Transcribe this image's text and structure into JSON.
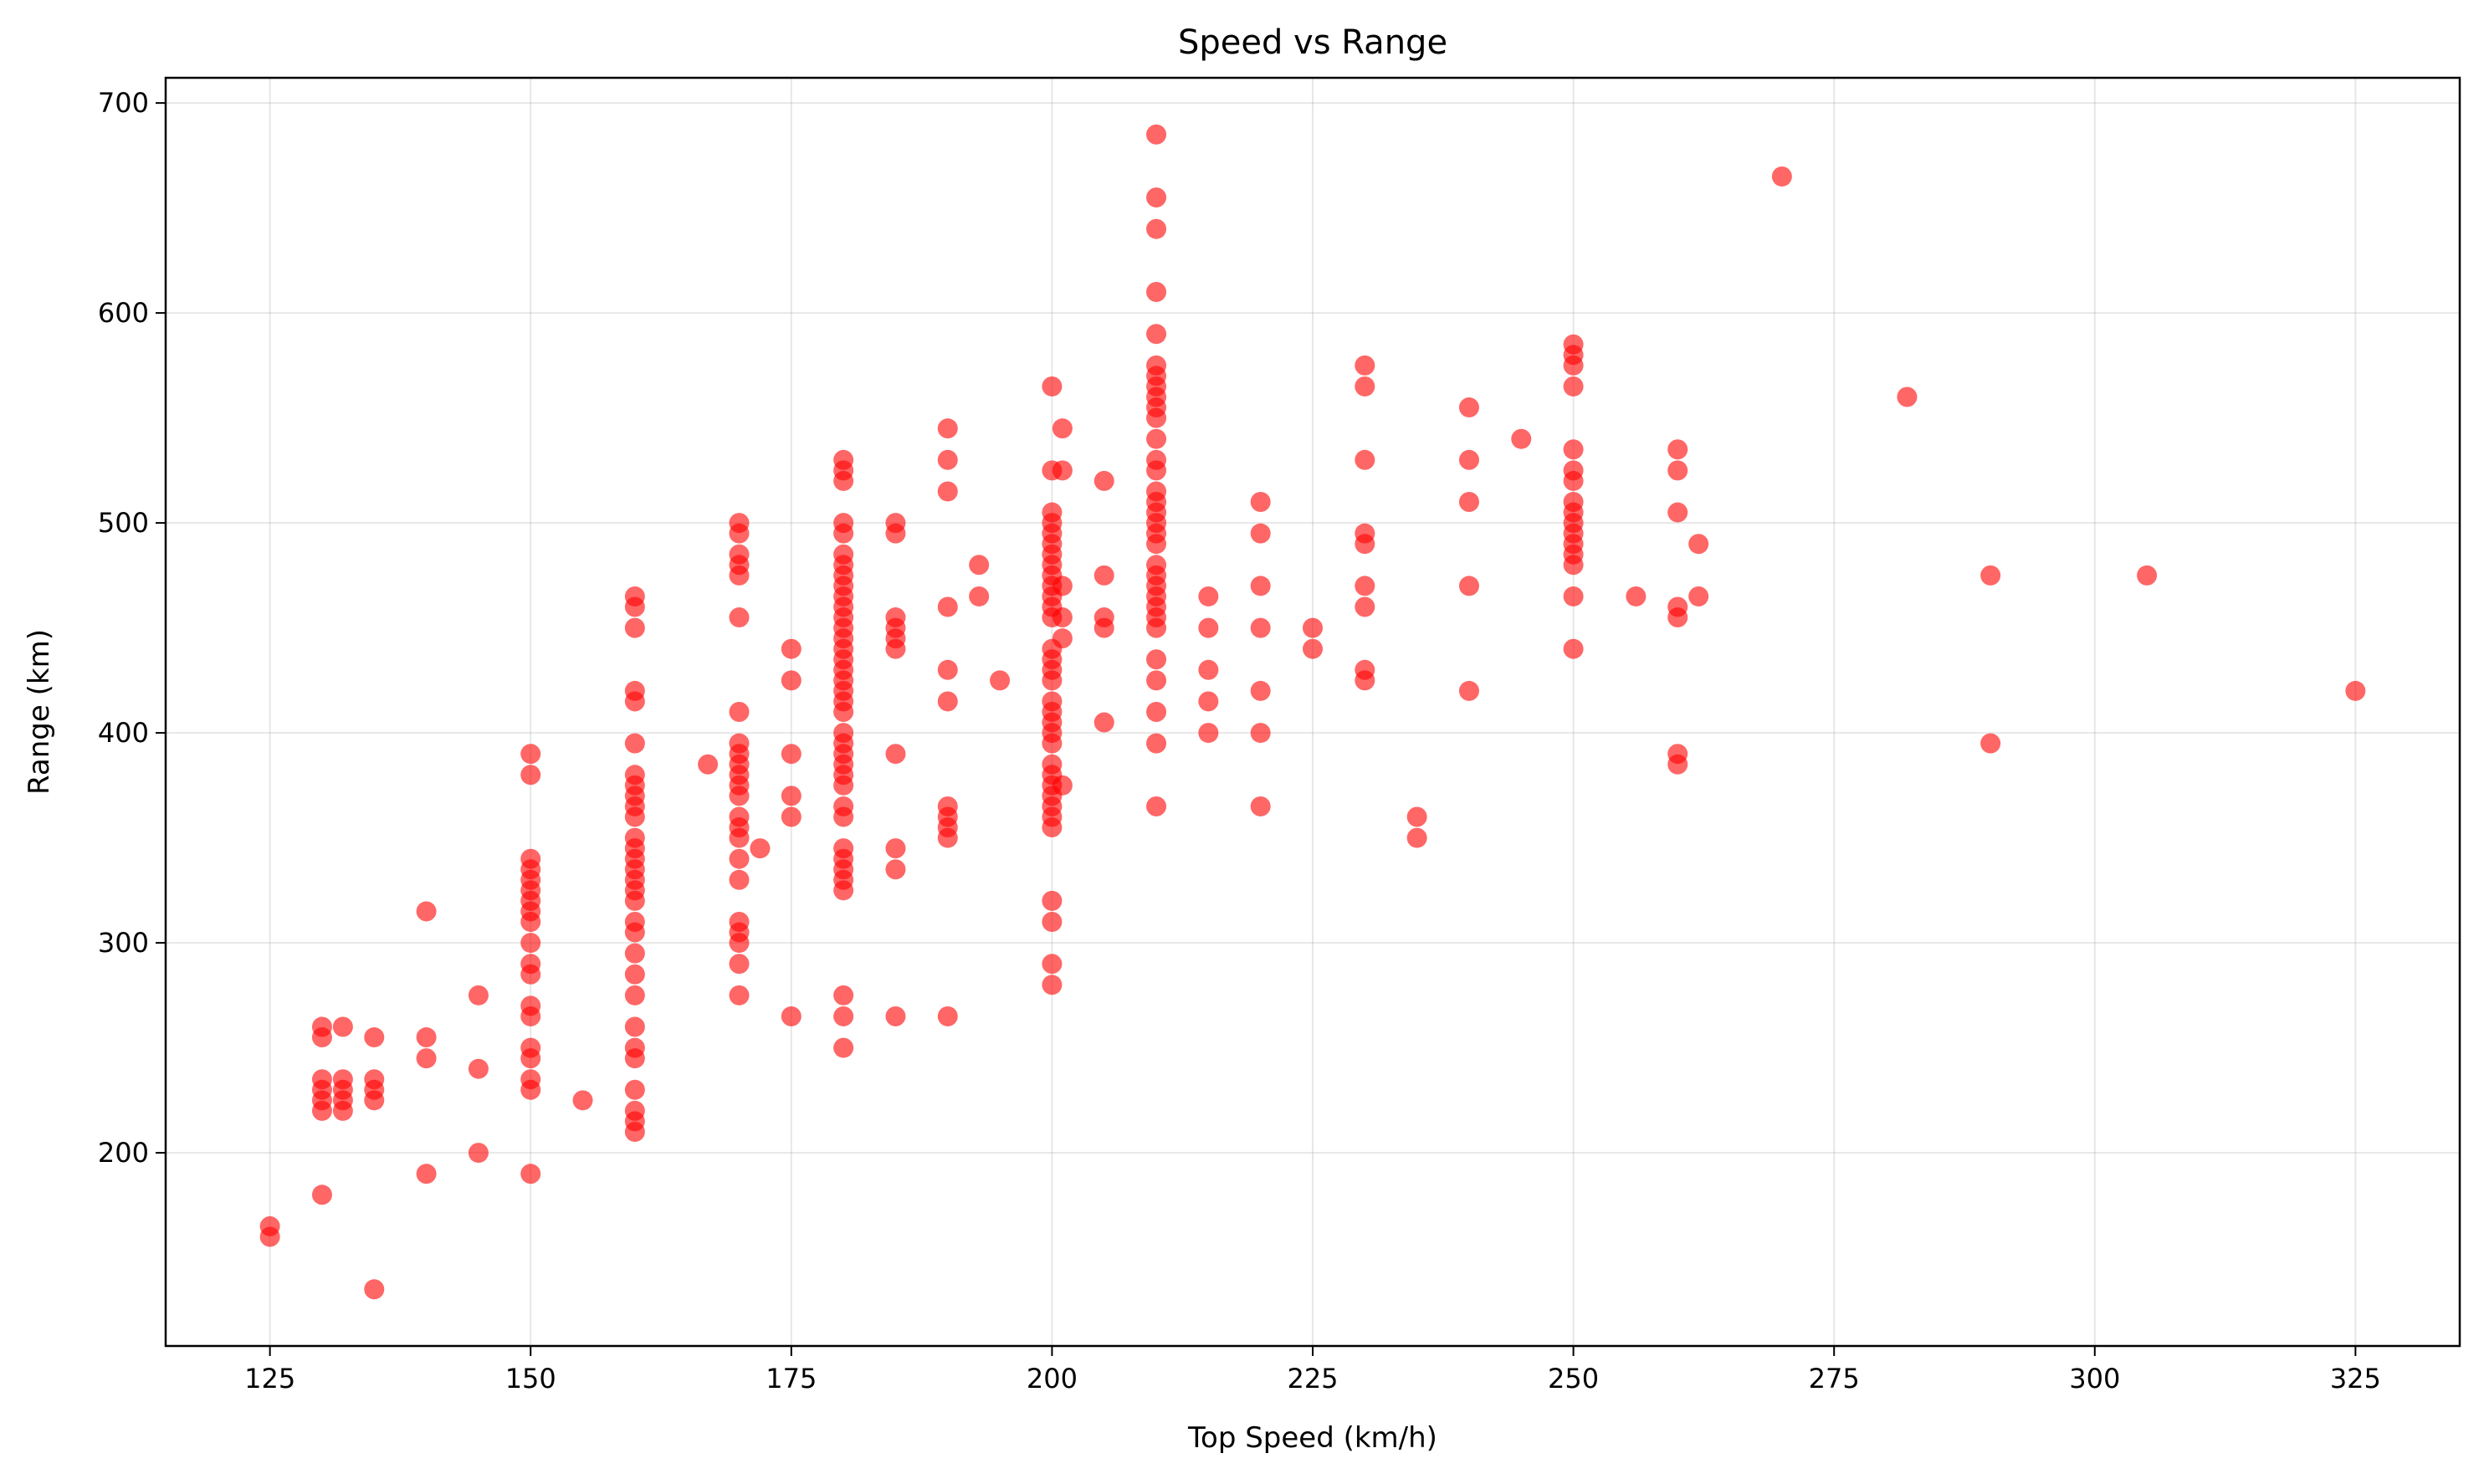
{
  "chart_data": {
    "type": "scatter",
    "title": "Speed vs Range",
    "xlabel": "Top Speed (km/h)",
    "ylabel": "Range (km)",
    "xlim": [
      115,
      335
    ],
    "ylim": [
      108,
      712
    ],
    "xticks": [
      125,
      150,
      175,
      200,
      225,
      250,
      275,
      300,
      325
    ],
    "yticks": [
      200,
      300,
      400,
      500,
      600,
      700
    ],
    "grid": true,
    "marker_color": "#ff0000",
    "marker_alpha": 0.6,
    "points": [
      [
        125,
        165
      ],
      [
        125,
        160
      ],
      [
        130,
        260
      ],
      [
        130,
        255
      ],
      [
        130,
        235
      ],
      [
        130,
        230
      ],
      [
        130,
        225
      ],
      [
        130,
        220
      ],
      [
        130,
        180
      ],
      [
        132,
        260
      ],
      [
        132,
        235
      ],
      [
        132,
        230
      ],
      [
        132,
        225
      ],
      [
        132,
        220
      ],
      [
        135,
        255
      ],
      [
        135,
        235
      ],
      [
        135,
        230
      ],
      [
        135,
        225
      ],
      [
        135,
        135
      ],
      [
        140,
        315
      ],
      [
        140,
        255
      ],
      [
        140,
        245
      ],
      [
        140,
        190
      ],
      [
        145,
        275
      ],
      [
        145,
        240
      ],
      [
        145,
        200
      ],
      [
        150,
        390
      ],
      [
        150,
        380
      ],
      [
        150,
        340
      ],
      [
        150,
        335
      ],
      [
        150,
        330
      ],
      [
        150,
        325
      ],
      [
        150,
        320
      ],
      [
        150,
        315
      ],
      [
        150,
        310
      ],
      [
        150,
        300
      ],
      [
        150,
        290
      ],
      [
        150,
        285
      ],
      [
        150,
        270
      ],
      [
        150,
        265
      ],
      [
        150,
        250
      ],
      [
        150,
        245
      ],
      [
        150,
        235
      ],
      [
        150,
        230
      ],
      [
        150,
        190
      ],
      [
        155,
        225
      ],
      [
        160,
        465
      ],
      [
        160,
        460
      ],
      [
        160,
        450
      ],
      [
        160,
        420
      ],
      [
        160,
        415
      ],
      [
        160,
        395
      ],
      [
        160,
        380
      ],
      [
        160,
        375
      ],
      [
        160,
        370
      ],
      [
        160,
        365
      ],
      [
        160,
        360
      ],
      [
        160,
        350
      ],
      [
        160,
        345
      ],
      [
        160,
        340
      ],
      [
        160,
        335
      ],
      [
        160,
        330
      ],
      [
        160,
        325
      ],
      [
        160,
        320
      ],
      [
        160,
        310
      ],
      [
        160,
        305
      ],
      [
        160,
        295
      ],
      [
        160,
        285
      ],
      [
        160,
        275
      ],
      [
        160,
        260
      ],
      [
        160,
        250
      ],
      [
        160,
        245
      ],
      [
        160,
        230
      ],
      [
        160,
        220
      ],
      [
        160,
        215
      ],
      [
        160,
        210
      ],
      [
        167,
        385
      ],
      [
        170,
        500
      ],
      [
        170,
        495
      ],
      [
        170,
        485
      ],
      [
        170,
        480
      ],
      [
        170,
        475
      ],
      [
        170,
        455
      ],
      [
        170,
        410
      ],
      [
        170,
        395
      ],
      [
        170,
        390
      ],
      [
        170,
        385
      ],
      [
        170,
        380
      ],
      [
        170,
        375
      ],
      [
        170,
        370
      ],
      [
        170,
        360
      ],
      [
        170,
        355
      ],
      [
        170,
        350
      ],
      [
        170,
        340
      ],
      [
        170,
        330
      ],
      [
        170,
        310
      ],
      [
        170,
        305
      ],
      [
        170,
        300
      ],
      [
        170,
        290
      ],
      [
        170,
        275
      ],
      [
        172,
        345
      ],
      [
        175,
        440
      ],
      [
        175,
        425
      ],
      [
        175,
        390
      ],
      [
        175,
        370
      ],
      [
        175,
        360
      ],
      [
        175,
        265
      ],
      [
        180,
        530
      ],
      [
        180,
        525
      ],
      [
        180,
        520
      ],
      [
        180,
        500
      ],
      [
        180,
        495
      ],
      [
        180,
        485
      ],
      [
        180,
        480
      ],
      [
        180,
        475
      ],
      [
        180,
        470
      ],
      [
        180,
        465
      ],
      [
        180,
        460
      ],
      [
        180,
        455
      ],
      [
        180,
        450
      ],
      [
        180,
        445
      ],
      [
        180,
        440
      ],
      [
        180,
        435
      ],
      [
        180,
        430
      ],
      [
        180,
        425
      ],
      [
        180,
        420
      ],
      [
        180,
        415
      ],
      [
        180,
        410
      ],
      [
        180,
        400
      ],
      [
        180,
        395
      ],
      [
        180,
        390
      ],
      [
        180,
        385
      ],
      [
        180,
        380
      ],
      [
        180,
        375
      ],
      [
        180,
        365
      ],
      [
        180,
        360
      ],
      [
        180,
        345
      ],
      [
        180,
        340
      ],
      [
        180,
        335
      ],
      [
        180,
        330
      ],
      [
        180,
        325
      ],
      [
        180,
        275
      ],
      [
        180,
        265
      ],
      [
        180,
        250
      ],
      [
        185,
        500
      ],
      [
        185,
        495
      ],
      [
        185,
        455
      ],
      [
        185,
        450
      ],
      [
        185,
        445
      ],
      [
        185,
        440
      ],
      [
        185,
        390
      ],
      [
        185,
        345
      ],
      [
        185,
        335
      ],
      [
        185,
        265
      ],
      [
        190,
        545
      ],
      [
        190,
        530
      ],
      [
        190,
        515
      ],
      [
        190,
        460
      ],
      [
        190,
        430
      ],
      [
        190,
        415
      ],
      [
        190,
        365
      ],
      [
        190,
        360
      ],
      [
        190,
        355
      ],
      [
        190,
        350
      ],
      [
        190,
        265
      ],
      [
        193,
        480
      ],
      [
        193,
        465
      ],
      [
        195,
        425
      ],
      [
        200,
        565
      ],
      [
        200,
        525
      ],
      [
        200,
        505
      ],
      [
        200,
        500
      ],
      [
        200,
        495
      ],
      [
        200,
        490
      ],
      [
        200,
        485
      ],
      [
        200,
        480
      ],
      [
        200,
        475
      ],
      [
        200,
        470
      ],
      [
        200,
        465
      ],
      [
        200,
        460
      ],
      [
        200,
        455
      ],
      [
        200,
        440
      ],
      [
        200,
        435
      ],
      [
        200,
        430
      ],
      [
        200,
        425
      ],
      [
        200,
        415
      ],
      [
        200,
        410
      ],
      [
        200,
        405
      ],
      [
        200,
        400
      ],
      [
        200,
        395
      ],
      [
        200,
        385
      ],
      [
        200,
        380
      ],
      [
        200,
        375
      ],
      [
        200,
        370
      ],
      [
        200,
        365
      ],
      [
        200,
        360
      ],
      [
        200,
        355
      ],
      [
        200,
        320
      ],
      [
        200,
        310
      ],
      [
        200,
        290
      ],
      [
        200,
        280
      ],
      [
        201,
        545
      ],
      [
        201,
        525
      ],
      [
        201,
        470
      ],
      [
        201,
        455
      ],
      [
        201,
        445
      ],
      [
        201,
        375
      ],
      [
        205,
        520
      ],
      [
        205,
        475
      ],
      [
        205,
        455
      ],
      [
        205,
        450
      ],
      [
        205,
        405
      ],
      [
        210,
        685
      ],
      [
        210,
        655
      ],
      [
        210,
        640
      ],
      [
        210,
        610
      ],
      [
        210,
        590
      ],
      [
        210,
        575
      ],
      [
        210,
        570
      ],
      [
        210,
        565
      ],
      [
        210,
        560
      ],
      [
        210,
        555
      ],
      [
        210,
        550
      ],
      [
        210,
        540
      ],
      [
        210,
        530
      ],
      [
        210,
        525
      ],
      [
        210,
        515
      ],
      [
        210,
        510
      ],
      [
        210,
        505
      ],
      [
        210,
        500
      ],
      [
        210,
        495
      ],
      [
        210,
        490
      ],
      [
        210,
        480
      ],
      [
        210,
        475
      ],
      [
        210,
        470
      ],
      [
        210,
        465
      ],
      [
        210,
        460
      ],
      [
        210,
        455
      ],
      [
        210,
        450
      ],
      [
        210,
        435
      ],
      [
        210,
        425
      ],
      [
        210,
        410
      ],
      [
        210,
        395
      ],
      [
        210,
        365
      ],
      [
        215,
        465
      ],
      [
        215,
        450
      ],
      [
        215,
        430
      ],
      [
        215,
        415
      ],
      [
        215,
        400
      ],
      [
        220,
        510
      ],
      [
        220,
        495
      ],
      [
        220,
        470
      ],
      [
        220,
        450
      ],
      [
        220,
        420
      ],
      [
        220,
        400
      ],
      [
        220,
        365
      ],
      [
        225,
        450
      ],
      [
        225,
        440
      ],
      [
        230,
        575
      ],
      [
        230,
        565
      ],
      [
        230,
        530
      ],
      [
        230,
        495
      ],
      [
        230,
        490
      ],
      [
        230,
        470
      ],
      [
        230,
        460
      ],
      [
        230,
        430
      ],
      [
        230,
        425
      ],
      [
        235,
        360
      ],
      [
        235,
        350
      ],
      [
        240,
        555
      ],
      [
        240,
        530
      ],
      [
        240,
        510
      ],
      [
        240,
        470
      ],
      [
        240,
        420
      ],
      [
        245,
        540
      ],
      [
        250,
        585
      ],
      [
        250,
        580
      ],
      [
        250,
        575
      ],
      [
        250,
        565
      ],
      [
        250,
        535
      ],
      [
        250,
        525
      ],
      [
        250,
        520
      ],
      [
        250,
        510
      ],
      [
        250,
        505
      ],
      [
        250,
        500
      ],
      [
        250,
        495
      ],
      [
        250,
        490
      ],
      [
        250,
        485
      ],
      [
        250,
        480
      ],
      [
        250,
        465
      ],
      [
        250,
        440
      ],
      [
        256,
        465
      ],
      [
        260,
        535
      ],
      [
        260,
        525
      ],
      [
        260,
        505
      ],
      [
        260,
        460
      ],
      [
        260,
        455
      ],
      [
        260,
        390
      ],
      [
        260,
        385
      ],
      [
        262,
        490
      ],
      [
        262,
        465
      ],
      [
        270,
        665
      ],
      [
        282,
        560
      ],
      [
        290,
        475
      ],
      [
        290,
        395
      ],
      [
        305,
        475
      ],
      [
        325,
        420
      ]
    ]
  }
}
